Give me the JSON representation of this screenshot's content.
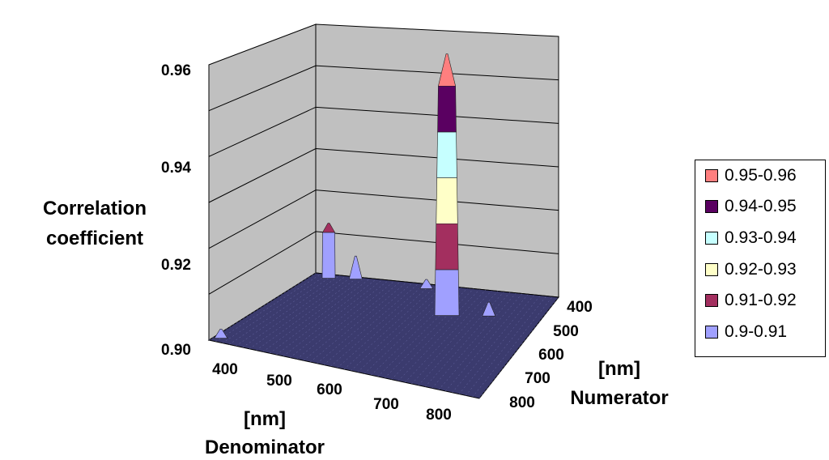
{
  "chart_data": {
    "type": "surface",
    "zlabel": [
      "Correlation",
      "coefficient"
    ],
    "zticks": [
      "0.96",
      "0.94",
      "0.92",
      "0.90"
    ],
    "zlim": [
      0.9,
      0.96
    ],
    "denominator_label": [
      "[nm]",
      "Denominator"
    ],
    "denominator_ticks": [
      "400",
      "500",
      "600",
      "700",
      "800"
    ],
    "numerator_label": [
      "[nm]",
      "Numerator"
    ],
    "numerator_ticks": [
      "400",
      "500",
      "600",
      "700",
      "800"
    ],
    "legend": [
      {
        "label": "0.95-0.96",
        "color": "#ff7f7f"
      },
      {
        "label": "0.94-0.95",
        "color": "#5a0061"
      },
      {
        "label": "0.93-0.94",
        "color": "#c6ffff"
      },
      {
        "label": "0.92-0.93",
        "color": "#ffffc8"
      },
      {
        "label": "0.91-0.92",
        "color": "#a32f5f"
      },
      {
        "label": "0.9-0.91",
        "color": "#a0a0ff"
      }
    ],
    "peaks": [
      {
        "denominator_nm": 660,
        "numerator_nm": 520,
        "value": 0.957
      },
      {
        "denominator_nm": 430,
        "numerator_nm": 420,
        "value": 0.912
      },
      {
        "denominator_nm": 470,
        "numerator_nm": 410,
        "value": 0.905
      },
      {
        "denominator_nm": 720,
        "numerator_nm": 500,
        "value": 0.903
      },
      {
        "denominator_nm": 590,
        "numerator_nm": 420,
        "value": 0.902
      },
      {
        "denominator_nm": 410,
        "numerator_nm": 780,
        "value": 0.902
      }
    ],
    "floor_color": "#3b3b6e",
    "wall_color": "#c0c0c0",
    "grid": true
  }
}
